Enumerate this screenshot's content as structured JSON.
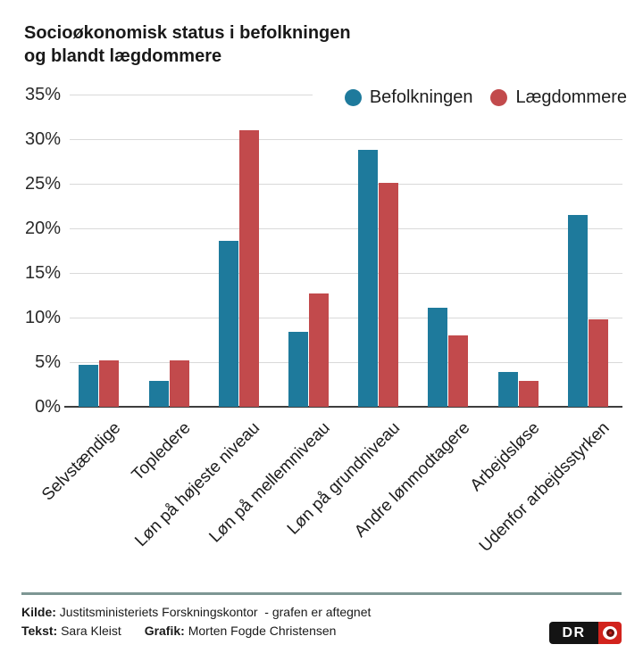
{
  "title": {
    "line1": "Socioøkonomisk status i befolkningen",
    "line2": "og blandt lægdommere"
  },
  "chart_data": {
    "type": "bar",
    "categories": [
      "Selvstændige",
      "Topledere",
      "Løn på højeste niveau",
      "Løn på mellemniveau",
      "Løn på grundniveau",
      "Andre lønmodtagere",
      "Arbejdsløse",
      "Udenfor arbejdsstyrken"
    ],
    "series": [
      {
        "name": "Befolkningen",
        "color": "#1e7a9c",
        "values": [
          4.7,
          2.9,
          18.6,
          8.4,
          28.8,
          11.1,
          3.9,
          21.5
        ]
      },
      {
        "name": "Lægdommere",
        "color": "#c24a4c",
        "values": [
          5.2,
          5.2,
          31.0,
          12.7,
          25.1,
          8.0,
          2.9,
          9.8
        ]
      }
    ],
    "y_ticks": [
      0,
      5,
      10,
      15,
      20,
      25,
      30,
      35
    ],
    "y_tick_suffix": "%",
    "ylim": [
      0,
      35
    ],
    "grid": true,
    "legend_position": "top-right",
    "x_tick_rotation": -45
  },
  "footer": {
    "divider_color": "#7d9693",
    "source_label": "Kilde:",
    "source_text": "Justitsministeriets Forskningskontor  - grafen er aftegnet",
    "credit1_label": "Tekst:",
    "credit1_value": "Sara Kleist",
    "credit2_label": "Grafik:",
    "credit2_value": "Morten Fogde Christensen",
    "logo_text": "DR"
  }
}
